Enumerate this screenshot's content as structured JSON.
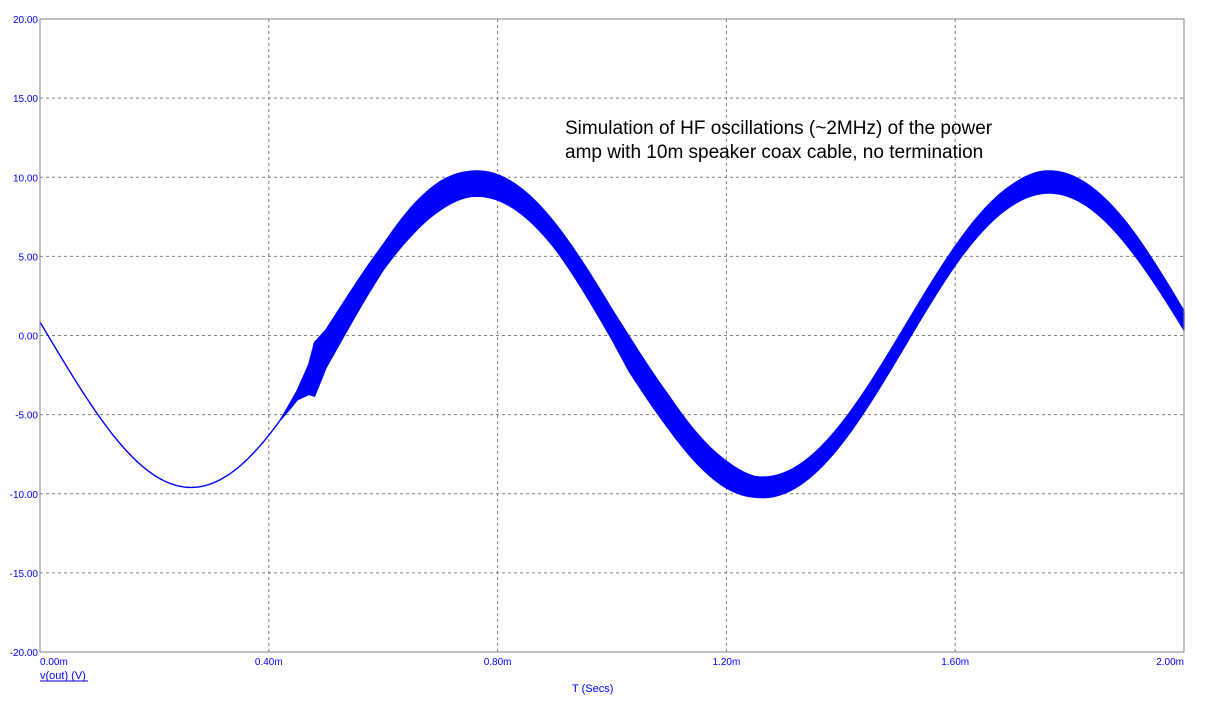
{
  "colors": {
    "axis_text": "#0000ff",
    "trace": "#0000ff",
    "grid": "#808080",
    "frame": "#808080",
    "annotation_text": "#000000",
    "background": "#ffffff"
  },
  "chart_data": {
    "type": "line",
    "title": "",
    "xlabel": "T (Secs)",
    "ylabel": "v(out) (V)",
    "xlim": [
      0,
      0.002
    ],
    "ylim": [
      -20,
      20
    ],
    "grid": true,
    "x_ticks": [
      {
        "value": 0,
        "label": "0.00m"
      },
      {
        "value": 0.0004,
        "label": "0.40m"
      },
      {
        "value": 0.0008,
        "label": "0.80m"
      },
      {
        "value": 0.0012,
        "label": "1.20m"
      },
      {
        "value": 0.0016,
        "label": "1.60m"
      },
      {
        "value": 0.002,
        "label": "2.00m"
      }
    ],
    "y_ticks": [
      {
        "value": 20,
        "label": "20.00"
      },
      {
        "value": 15,
        "label": "15.00"
      },
      {
        "value": 10,
        "label": "10.00"
      },
      {
        "value": 5,
        "label": "5.00"
      },
      {
        "value": 0,
        "label": "0.00"
      },
      {
        "value": -5,
        "label": "-5.00"
      },
      {
        "value": -10,
        "label": "-10.00"
      },
      {
        "value": -15,
        "label": "-15.00"
      },
      {
        "value": -20,
        "label": "-20.00"
      }
    ],
    "annotation": {
      "lines": [
        "Simulation of HF oscillations (~2MHz) of the power",
        "amp with 10m speaker coax cable, no termination"
      ]
    },
    "series": [
      {
        "name": "v(out) (V)",
        "frequency_hz": 1000,
        "phase_turns": 0.486,
        "amplitude": 9.6,
        "envelope": {
          "x": [
            0,
            0.00042,
            0.00045,
            0.00047,
            0.00048,
            0.0005,
            0.0006,
            0.00065,
            0.0007,
            0.00075,
            0.0009,
            0.001,
            0.00103,
            0.0011,
            0.0012,
            0.00125,
            0.0014,
            0.0016,
            0.0017,
            0.00175,
            0.0019,
            0.002
          ],
          "lower": [
            0,
            0,
            -0.3,
            -1.1,
            -1.8,
            -1.2,
            -0.8,
            -0.9,
            -0.9,
            -0.8,
            -0.8,
            -1.1,
            -1.3,
            -1.0,
            -0.8,
            -0.65,
            -0.6,
            -0.5,
            -0.6,
            -0.6,
            -0.6,
            -0.5
          ],
          "upper": [
            0,
            0,
            0.3,
            0.8,
            1.6,
            1.2,
            0.8,
            0.9,
            0.9,
            0.8,
            0.8,
            0.8,
            0.9,
            1.1,
            0.9,
            0.65,
            0.7,
            0.7,
            0.7,
            0.8,
            0.8,
            0.7
          ]
        }
      }
    ]
  }
}
